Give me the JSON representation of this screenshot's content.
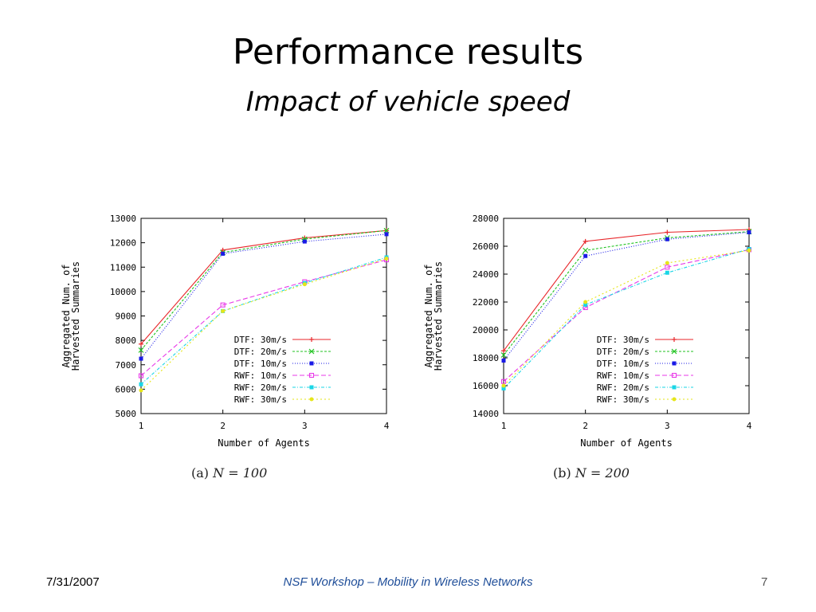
{
  "slide": {
    "title": "Performance results",
    "subtitle": "Impact of vehicle speed",
    "date": "7/31/2007",
    "footer": "NSF Workshop – Mobility in Wireless Networks",
    "page_number": "7"
  },
  "captions": [
    {
      "label": "(a)",
      "math": "N = 100"
    },
    {
      "label": "(b)",
      "math": "N = 200"
    }
  ],
  "series_style": [
    {
      "name": "DTF: 30m/s",
      "color": "#e8262a",
      "dash": "",
      "marker": "plus"
    },
    {
      "name": "DTF: 20m/s",
      "color": "#22c322",
      "dash": "3,2",
      "marker": "cross"
    },
    {
      "name": "DTF: 10m/s",
      "color": "#1a1ae6",
      "dash": "1,2",
      "marker": "star"
    },
    {
      "name": "RWF: 10m/s",
      "color": "#e83ae8",
      "dash": "6,3",
      "marker": "square"
    },
    {
      "name": "RWF: 20m/s",
      "color": "#1ad6e6",
      "dash": "4,2,1,2",
      "marker": "filled-square"
    },
    {
      "name": "RWF: 30m/s",
      "color": "#e6e61a",
      "dash": "2,3",
      "marker": "circle"
    }
  ],
  "chart_data": [
    {
      "type": "line",
      "xlabel": "Number of Agents",
      "ylabel": [
        "Aggregated Num. of",
        "Harvested Summaries"
      ],
      "x": [
        1,
        2,
        3,
        4
      ],
      "xlim": [
        1,
        4
      ],
      "ylim": [
        5000,
        13000
      ],
      "yticks": [
        5000,
        6000,
        7000,
        8000,
        9000,
        10000,
        11000,
        12000,
        13000
      ],
      "xticks": [
        1,
        2,
        3,
        4
      ],
      "legend": "bottom-right",
      "series": [
        {
          "name": "DTF: 30m/s",
          "values": [
            7850,
            11700,
            12200,
            12500
          ]
        },
        {
          "name": "DTF: 20m/s",
          "values": [
            7600,
            11600,
            12150,
            12500
          ]
        },
        {
          "name": "DTF: 10m/s",
          "values": [
            7250,
            11550,
            12050,
            12350
          ]
        },
        {
          "name": "RWF: 10m/s",
          "values": [
            6550,
            9450,
            10400,
            11300
          ]
        },
        {
          "name": "RWF: 20m/s",
          "values": [
            6200,
            9200,
            10350,
            11400
          ]
        },
        {
          "name": "RWF: 30m/s",
          "values": [
            5950,
            9200,
            10300,
            11350
          ]
        }
      ]
    },
    {
      "type": "line",
      "xlabel": "Number of Agents",
      "ylabel": [
        "Aggregated Num. of",
        "Harvested Summaries"
      ],
      "x": [
        1,
        2,
        3,
        4
      ],
      "xlim": [
        1,
        4
      ],
      "ylim": [
        14000,
        28000
      ],
      "yticks": [
        14000,
        16000,
        18000,
        20000,
        22000,
        24000,
        26000,
        28000
      ],
      "xticks": [
        1,
        2,
        3,
        4
      ],
      "legend": "bottom-right",
      "series": [
        {
          "name": "DTF: 30m/s",
          "values": [
            18500,
            26350,
            27000,
            27200
          ]
        },
        {
          "name": "DTF: 20m/s",
          "values": [
            18200,
            25700,
            26600,
            27050
          ]
        },
        {
          "name": "DTF: 10m/s",
          "values": [
            17800,
            25300,
            26500,
            27000
          ]
        },
        {
          "name": "RWF: 10m/s",
          "values": [
            16300,
            21600,
            24500,
            25750
          ]
        },
        {
          "name": "RWF: 20m/s",
          "values": [
            15800,
            21800,
            24100,
            25800
          ]
        },
        {
          "name": "RWF: 30m/s",
          "values": [
            16000,
            22000,
            24800,
            25700
          ]
        }
      ]
    }
  ]
}
